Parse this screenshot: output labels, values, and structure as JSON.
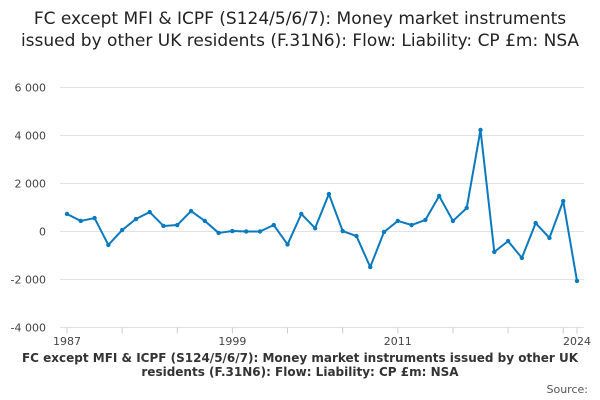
{
  "chart_data": {
    "type": "line",
    "title": "FC except MFI & ICPF (S124/5/6/7): Money market instruments issued by other UK residents (F.31N6): Flow: Liability: CP £m: NSA",
    "xlabel": "",
    "ylabel": "",
    "x": [
      1987,
      1988,
      1989,
      1990,
      1991,
      1992,
      1993,
      1994,
      1995,
      1996,
      1997,
      1998,
      1999,
      2000,
      2001,
      2002,
      2003,
      2004,
      2005,
      2006,
      2007,
      2008,
      2009,
      2010,
      2011,
      2012,
      2013,
      2014,
      2015,
      2016,
      2017,
      2018,
      2019,
      2020,
      2021,
      2022,
      2023,
      2024
    ],
    "values": [
      730,
      440,
      560,
      -560,
      60,
      520,
      810,
      230,
      270,
      850,
      440,
      -60,
      20,
      0,
      0,
      270,
      -540,
      730,
      140,
      1560,
      20,
      -190,
      -1480,
      -20,
      440,
      270,
      480,
      1480,
      440,
      980,
      4230,
      -850,
      -400,
      -1100,
      350,
      -270,
      1270,
      -2060
    ],
    "xlim": [
      1987,
      2024
    ],
    "ylim": [
      -4000,
      6000
    ],
    "yticks": [
      -4000,
      -2000,
      0,
      2000,
      4000,
      6000
    ],
    "ytick_labels": [
      "-4 000",
      "-2 000",
      "0",
      "2 000",
      "4 000",
      "6 000"
    ],
    "xtick_labels": [
      "1987",
      "1999",
      "2011",
      "2024"
    ],
    "grid": "horizontal",
    "legend": "none",
    "line_color": "#0a7ac0"
  },
  "footer": {
    "caption": "FC except MFI & ICPF (S124/5/6/7): Money market instruments issued by other UK residents (F.31N6): Flow: Liability: CP £m: NSA",
    "source_label": "Source:"
  }
}
